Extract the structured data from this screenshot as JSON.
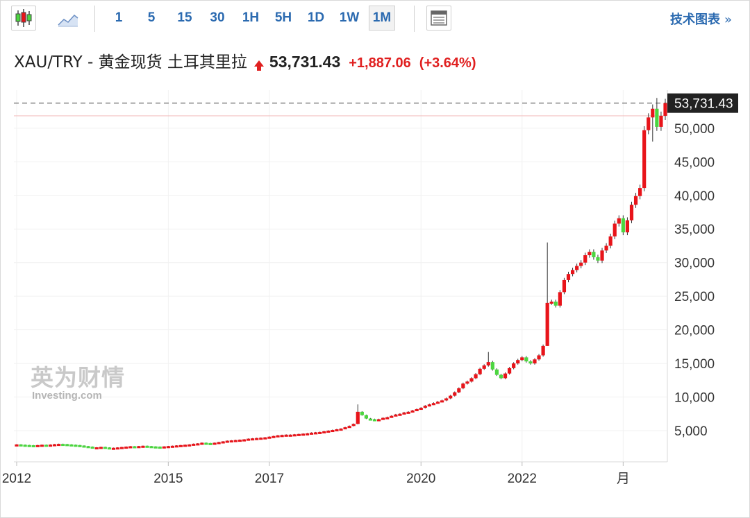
{
  "toolbar": {
    "chart_type_icons": [
      "candlestick-icon",
      "area-chart-icon",
      "table-view-icon"
    ],
    "timeframes": [
      "1",
      "5",
      "15",
      "30",
      "1H",
      "5H",
      "1D",
      "1W",
      "1M"
    ],
    "active_timeframe": "1M",
    "tech_chart_label": "技术图表",
    "tech_chart_arrow": "»"
  },
  "header": {
    "instrument": "XAU/TRY - 黄金现货 土耳其里拉",
    "price": "53,731.43",
    "change": "+1,887.06",
    "change_pct": "(+3.64%)",
    "direction": "up"
  },
  "watermark": {
    "cn": "英为财情",
    "en": "Investing.com"
  },
  "colors": {
    "up": "#e8141a",
    "down": "#4cd640",
    "link": "#2b6ab0",
    "ref_line": "#f2b6b6"
  },
  "chart_data": {
    "type": "candlestick",
    "interval": "1M",
    "x_tick_labels": [
      "2012",
      "2015",
      "2017",
      "2020",
      "2022",
      "月"
    ],
    "y_tick_labels": [
      "5,000",
      "10,000",
      "15,000",
      "20,000",
      "25,000",
      "30,000",
      "35,000",
      "40,000",
      "45,000",
      "50,000"
    ],
    "y_ticks": [
      5000,
      10000,
      15000,
      20000,
      25000,
      30000,
      35000,
      40000,
      45000,
      50000
    ],
    "last_price_label": "53,731.43",
    "last_price": 53731.43,
    "previous_close": 51844.37,
    "grid": true,
    "y_axis_side": "right",
    "closes": [
      2950,
      2900,
      2860,
      2830,
      2800,
      2850,
      2900,
      2870,
      2920,
      2980,
      3030,
      3000,
      2950,
      2900,
      2850,
      2780,
      2700,
      2620,
      2500,
      2520,
      2580,
      2500,
      2420,
      2450,
      2500,
      2560,
      2620,
      2680,
      2650,
      2700,
      2750,
      2700,
      2650,
      2620,
      2600,
      2650,
      2700,
      2750,
      2800,
      2850,
      2900,
      2950,
      3050,
      3100,
      3200,
      3150,
      3100,
      3200,
      3300,
      3400,
      3500,
      3550,
      3600,
      3650,
      3700,
      3800,
      3850,
      3900,
      3950,
      4000,
      4100,
      4200,
      4300,
      4350,
      4400,
      4400,
      4450,
      4500,
      4550,
      4600,
      4700,
      4750,
      4800,
      4900,
      5000,
      5100,
      5200,
      5300,
      5500,
      5700,
      6000,
      7800,
      7300,
      6800,
      6700,
      6600,
      6700,
      6900,
      7000,
      7200,
      7400,
      7500,
      7700,
      7800,
      8000,
      8200,
      8400,
      8700,
      8900,
      9100,
      9300,
      9500,
      9800,
      10200,
      10700,
      11300,
      12000,
      12300,
      12800,
      13400,
      14200,
      14700,
      15200,
      14100,
      13300,
      12800,
      13500,
      14300,
      15000,
      15500,
      15900,
      15300,
      15000,
      15600,
      16200,
      17600,
      24000,
      24200,
      23600,
      25600,
      27400,
      28300,
      28900,
      29500,
      30000,
      31100,
      31600,
      30800,
      30300,
      31800,
      32500,
      33900,
      35800,
      36600,
      34500,
      36300,
      38600,
      39900,
      41100,
      49700,
      51600,
      52900,
      50200,
      51844.37,
      53731.43
    ]
  }
}
